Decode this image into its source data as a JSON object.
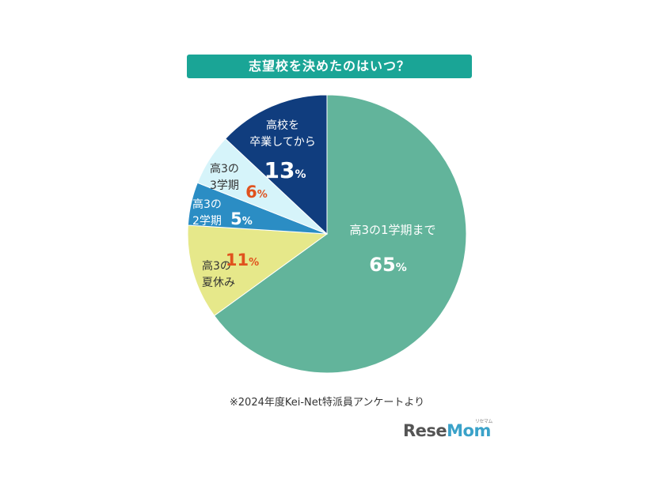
{
  "chart_data": {
    "type": "pie",
    "title": "志望校を決めたのはいつ？",
    "slices": [
      {
        "key": "s1",
        "line1": "高3の1学期まで",
        "line2": "",
        "value": 65,
        "label_value": "65",
        "pct": "%",
        "color": "#62b49b",
        "text_color": "#ffffff",
        "value_color": "#ffffff"
      },
      {
        "key": "s2",
        "line1": "高3の",
        "line2": "夏休み",
        "value": 11,
        "label_value": "11",
        "pct": "%",
        "color": "#e6e88a",
        "text_color": "#333333",
        "value_color": "#e0521e"
      },
      {
        "key": "s3",
        "line1": "高3の",
        "line2": "2学期",
        "value": 5,
        "label_value": "5",
        "pct": "%",
        "color": "#2b8dc4",
        "text_color": "#ffffff",
        "value_color": "#ffffff"
      },
      {
        "key": "s4",
        "line1": "高3の",
        "line2": "3学期",
        "value": 6,
        "label_value": "6",
        "pct": "%",
        "color": "#d6f4fa",
        "text_color": "#333333",
        "value_color": "#e0521e"
      },
      {
        "key": "s5",
        "line1": "高校を",
        "line2": "卒業してから",
        "value": 13,
        "label_value": "13",
        "pct": "%",
        "color": "#103d7e",
        "text_color": "#ffffff",
        "value_color": "#ffffff"
      }
    ],
    "colors": {
      "title_bg": "#1aa596",
      "stroke": "#ffffff"
    }
  },
  "note": "※2024年度Kei-Net特派員アンケートより",
  "brand": {
    "part1": "Rese",
    "part2": "Mom",
    "mark": "リセマム"
  }
}
